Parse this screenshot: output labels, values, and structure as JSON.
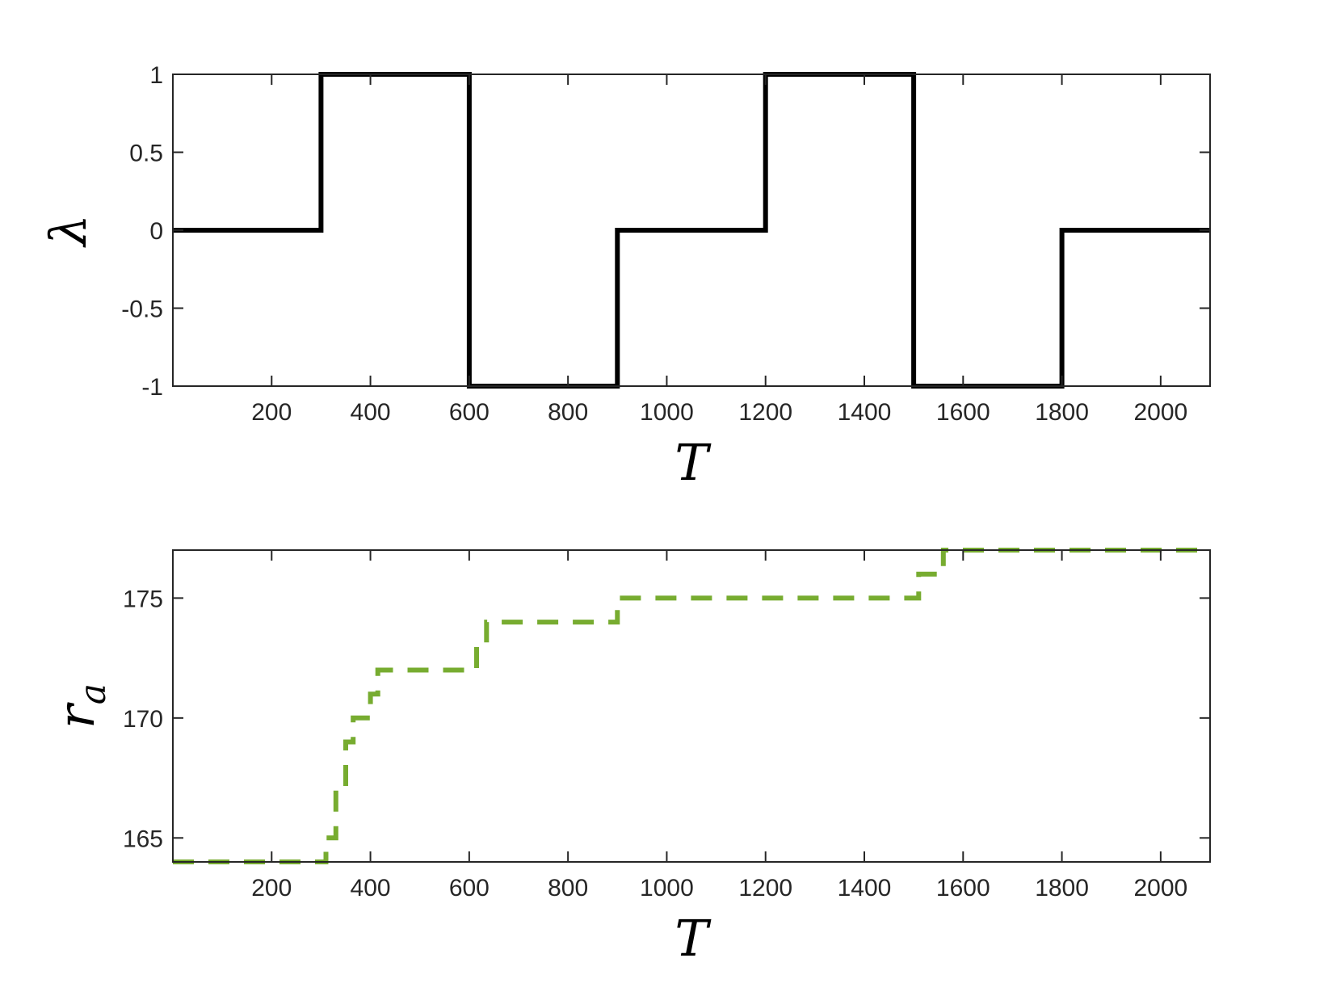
{
  "chart_data": [
    {
      "type": "line",
      "name": "lambda-panel",
      "xlabel": "T",
      "ylabel": "λ",
      "xlim": [
        0,
        2100
      ],
      "ylim": [
        -1,
        1
      ],
      "xticks": [
        200,
        400,
        600,
        800,
        1000,
        1200,
        1400,
        1600,
        1800,
        2000
      ],
      "xtick_labels": [
        "200",
        "400",
        "600",
        "800",
        "1000",
        "1200",
        "1400",
        "1600",
        "1800",
        "2000"
      ],
      "yticks": [
        -1,
        -0.5,
        0,
        0.5,
        1
      ],
      "ytick_labels": [
        "-1",
        "-0.5",
        "0",
        "0.5",
        "1"
      ],
      "grid": false,
      "series": [
        {
          "color": "#000000",
          "style": "solid",
          "x": [
            0,
            300,
            300,
            600,
            600,
            900,
            900,
            1200,
            1200,
            1500,
            1500,
            1800,
            1800,
            2100
          ],
          "y": [
            0,
            0,
            1,
            1,
            -1,
            -1,
            0,
            0,
            1,
            1,
            -1,
            -1,
            0,
            0
          ]
        }
      ]
    },
    {
      "type": "line",
      "name": "ra-panel",
      "xlabel": "T",
      "ylabel_main": "r",
      "ylabel_sub": "a",
      "xlim": [
        0,
        2100
      ],
      "ylim": [
        164,
        177
      ],
      "xticks": [
        200,
        400,
        600,
        800,
        1000,
        1200,
        1400,
        1600,
        1800,
        2000
      ],
      "xtick_labels": [
        "200",
        "400",
        "600",
        "800",
        "1000",
        "1200",
        "1400",
        "1600",
        "1800",
        "2000"
      ],
      "yticks": [
        165,
        170,
        175
      ],
      "ytick_labels": [
        "165",
        "170",
        "175"
      ],
      "grid": false,
      "series": [
        {
          "color": "#77AC30",
          "style": "dashed",
          "x": [
            0,
            310,
            310,
            330,
            330,
            350,
            350,
            365,
            365,
            400,
            400,
            415,
            415,
            615,
            615,
            635,
            635,
            900,
            900,
            1510,
            1510,
            1560,
            1560,
            2100
          ],
          "y": [
            164,
            164,
            165,
            165,
            167,
            167,
            169,
            169,
            170,
            170,
            171,
            171,
            172,
            172,
            173,
            173,
            174,
            174,
            175,
            175,
            176,
            176,
            177,
            177
          ]
        }
      ]
    }
  ]
}
